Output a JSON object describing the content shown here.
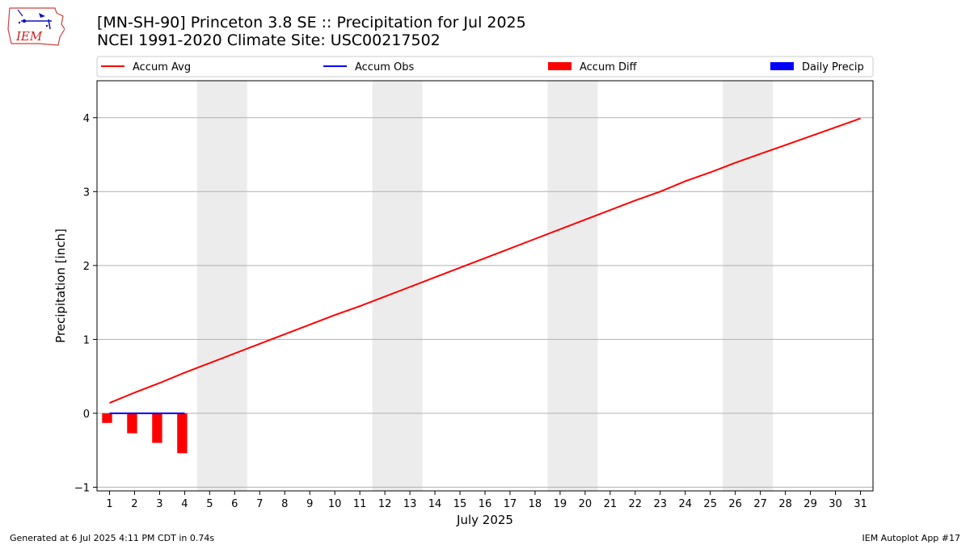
{
  "header": {
    "title_line1": "[MN-SH-90] Princeton 3.8 SE :: Precipitation for Jul 2025",
    "title_line2": "NCEI 1991-2020 Climate Site: USC00217502"
  },
  "logo": {
    "text": "IEM"
  },
  "footer": {
    "generated": "Generated at 6 Jul 2025 4:11 PM CDT in 0.74s",
    "app": "IEM Autoplot App #17"
  },
  "chart_data": {
    "type": "line",
    "xlabel": "July 2025",
    "ylabel": "Precipitation [inch]",
    "xlim": [
      0.5,
      31.5
    ],
    "ylim": [
      -1.05,
      4.5
    ],
    "x_ticks": [
      1,
      2,
      3,
      4,
      5,
      6,
      7,
      8,
      9,
      10,
      11,
      12,
      13,
      14,
      15,
      16,
      17,
      18,
      19,
      20,
      21,
      22,
      23,
      24,
      25,
      26,
      27,
      28,
      29,
      30,
      31
    ],
    "y_ticks": [
      -1,
      0,
      1,
      2,
      3,
      4
    ],
    "grid": "horizontal",
    "legend_placement": "top",
    "weekend_shading": [
      [
        4.5,
        6.5
      ],
      [
        11.5,
        13.5
      ],
      [
        18.5,
        20.5
      ],
      [
        25.5,
        27.5
      ]
    ],
    "legend": [
      {
        "label": "Accum Avg",
        "kind": "line",
        "color": "#ff0000"
      },
      {
        "label": "Accum Obs",
        "kind": "line",
        "color": "#0000ff"
      },
      {
        "label": "Accum Diff",
        "kind": "bar",
        "color": "#ff0000"
      },
      {
        "label": "Daily Precip",
        "kind": "bar",
        "color": "#0000ff"
      }
    ],
    "series": [
      {
        "name": "Accum Avg",
        "color": "#ff0000",
        "x": [
          1,
          2,
          3,
          4,
          5,
          6,
          7,
          8,
          9,
          10,
          11,
          12,
          13,
          14,
          15,
          16,
          17,
          18,
          19,
          20,
          21,
          22,
          23,
          24,
          25,
          26,
          27,
          28,
          29,
          30,
          31
        ],
        "values": [
          0.14,
          0.28,
          0.41,
          0.55,
          0.68,
          0.81,
          0.94,
          1.07,
          1.2,
          1.33,
          1.45,
          1.58,
          1.71,
          1.84,
          1.97,
          2.1,
          2.23,
          2.36,
          2.49,
          2.62,
          2.75,
          2.88,
          3.0,
          3.14,
          3.26,
          3.39,
          3.51,
          3.63,
          3.75,
          3.87,
          3.99
        ]
      },
      {
        "name": "Accum Obs",
        "color": "#0000ff",
        "x": [
          1,
          2,
          3,
          4
        ],
        "values": [
          0.0,
          0.0,
          0.0,
          0.0
        ]
      },
      {
        "name": "Accum Diff",
        "color": "#ff0000",
        "x": [
          1,
          2,
          3,
          4
        ],
        "values": [
          -0.13,
          -0.27,
          -0.4,
          -0.54
        ]
      },
      {
        "name": "Daily Precip",
        "color": "#0000ff",
        "x": [
          1,
          2,
          3,
          4
        ],
        "values": [
          0.0,
          0.0,
          0.0,
          0.0
        ]
      }
    ]
  }
}
